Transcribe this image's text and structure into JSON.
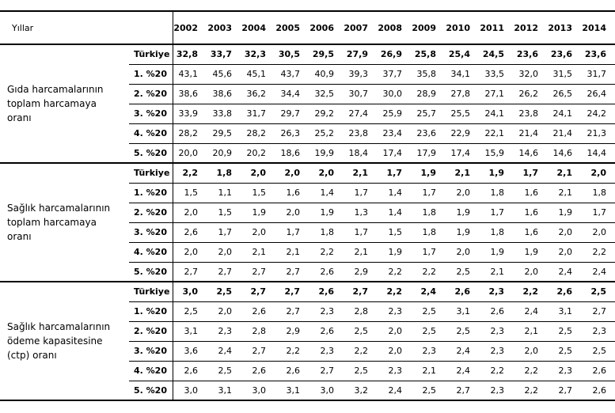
{
  "page": {
    "background_color": "#ffffff",
    "text_color": "#000000",
    "border_color": "#000000"
  },
  "table": {
    "corner_label": "Yıllar",
    "years": [
      "2002",
      "2003",
      "2004",
      "2005",
      "2006",
      "2007",
      "2008",
      "2009",
      "2010",
      "2011",
      "2012",
      "2013",
      "2014"
    ],
    "sections": [
      {
        "label": "Gıda harcamalarının toplam harcamaya oranı",
        "rows": [
          {
            "label": "Türkiye",
            "bold": true,
            "values": [
              "32,8",
              "33,7",
              "32,3",
              "30,5",
              "29,5",
              "27,9",
              "26,9",
              "25,8",
              "25,4",
              "24,5",
              "23,6",
              "23,6",
              "23,6"
            ]
          },
          {
            "label": "1. %20",
            "bold": false,
            "values": [
              "43,1",
              "45,6",
              "45,1",
              "43,7",
              "40,9",
              "39,3",
              "37,7",
              "35,8",
              "34,1",
              "33,5",
              "32,0",
              "31,5",
              "31,7"
            ]
          },
          {
            "label": "2. %20",
            "bold": false,
            "values": [
              "38,6",
              "38,6",
              "36,2",
              "34,4",
              "32,5",
              "30,7",
              "30,0",
              "28,9",
              "27,8",
              "27,1",
              "26,2",
              "26,5",
              "26,4"
            ]
          },
          {
            "label": "3. %20",
            "bold": false,
            "values": [
              "33,9",
              "33,8",
              "31,7",
              "29,7",
              "29,2",
              "27,4",
              "25,9",
              "25,7",
              "25,5",
              "24,1",
              "23,8",
              "24,1",
              "24,2"
            ]
          },
          {
            "label": "4. %20",
            "bold": false,
            "values": [
              "28,2",
              "29,5",
              "28,2",
              "26,3",
              "25,2",
              "23,8",
              "23,4",
              "23,6",
              "22,9",
              "22,1",
              "21,4",
              "21,4",
              "21,3"
            ]
          },
          {
            "label": "5. %20",
            "bold": false,
            "values": [
              "20,0",
              "20,9",
              "20,2",
              "18,6",
              "19,9",
              "18,4",
              "17,4",
              "17,9",
              "17,4",
              "15,9",
              "14,6",
              "14,6",
              "14,4"
            ]
          }
        ]
      },
      {
        "label": "Sağlık harcamalarının toplam harcamaya oranı",
        "rows": [
          {
            "label": "Türkiye",
            "bold": true,
            "values": [
              "2,2",
              "1,8",
              "2,0",
              "2,0",
              "2,0",
              "2,1",
              "1,7",
              "1,9",
              "2,1",
              "1,9",
              "1,7",
              "2,1",
              "2,0"
            ]
          },
          {
            "label": "1. %20",
            "bold": false,
            "values": [
              "1,5",
              "1,1",
              "1,5",
              "1,6",
              "1,4",
              "1,7",
              "1,4",
              "1,7",
              "2,0",
              "1,8",
              "1,6",
              "2,1",
              "1,8"
            ]
          },
          {
            "label": "2. %20",
            "bold": false,
            "values": [
              "2,0",
              "1,5",
              "1,9",
              "2,0",
              "1,9",
              "1,3",
              "1,4",
              "1,8",
              "1,9",
              "1,7",
              "1,6",
              "1,9",
              "1,7"
            ]
          },
          {
            "label": "3. %20",
            "bold": false,
            "values": [
              "2,6",
              "1,7",
              "2,0",
              "1,7",
              "1,8",
              "1,7",
              "1,5",
              "1,8",
              "1,9",
              "1,8",
              "1,6",
              "2,0",
              "2,0"
            ]
          },
          {
            "label": "4. %20",
            "bold": false,
            "values": [
              "2,0",
              "2,0",
              "2,1",
              "2,1",
              "2,2",
              "2,1",
              "1,9",
              "1,7",
              "2,0",
              "1,9",
              "1,9",
              "2,0",
              "2,2"
            ]
          },
          {
            "label": "5. %20",
            "bold": false,
            "values": [
              "2,7",
              "2,7",
              "2,7",
              "2,7",
              "2,6",
              "2,9",
              "2,2",
              "2,2",
              "2,5",
              "2,1",
              "2,0",
              "2,4",
              "2,4"
            ]
          }
        ]
      },
      {
        "label": "Sağlık harcamalarının ödeme kapasitesine (ctp) oranı",
        "rows": [
          {
            "label": "Türkiye",
            "bold": true,
            "values": [
              "3,0",
              "2,5",
              "2,7",
              "2,7",
              "2,6",
              "2,7",
              "2,2",
              "2,4",
              "2,6",
              "2,3",
              "2,2",
              "2,6",
              "2,5"
            ]
          },
          {
            "label": "1. %20",
            "bold": false,
            "values": [
              "2,5",
              "2,0",
              "2,6",
              "2,7",
              "2,3",
              "2,8",
              "2,3",
              "2,5",
              "3,1",
              "2,6",
              "2,4",
              "3,1",
              "2,7"
            ]
          },
          {
            "label": "2. %20",
            "bold": false,
            "values": [
              "3,1",
              "2,3",
              "2,8",
              "2,9",
              "2,6",
              "2,5",
              "2,0",
              "2,5",
              "2,5",
              "2,3",
              "2,1",
              "2,5",
              "2,3"
            ]
          },
          {
            "label": "3. %20",
            "bold": false,
            "values": [
              "3,6",
              "2,4",
              "2,7",
              "2,2",
              "2,3",
              "2,2",
              "2,0",
              "2,3",
              "2,4",
              "2,3",
              "2,0",
              "2,5",
              "2,5"
            ]
          },
          {
            "label": "4. %20",
            "bold": false,
            "values": [
              "2,6",
              "2,5",
              "2,6",
              "2,6",
              "2,7",
              "2,5",
              "2,3",
              "2,1",
              "2,4",
              "2,2",
              "2,2",
              "2,3",
              "2,6"
            ]
          },
          {
            "label": "5. %20",
            "bold": false,
            "values": [
              "3,0",
              "3,1",
              "3,0",
              "3,1",
              "3,0",
              "3,2",
              "2,4",
              "2,5",
              "2,7",
              "2,3",
              "2,2",
              "2,7",
              "2,6"
            ]
          }
        ]
      }
    ]
  }
}
